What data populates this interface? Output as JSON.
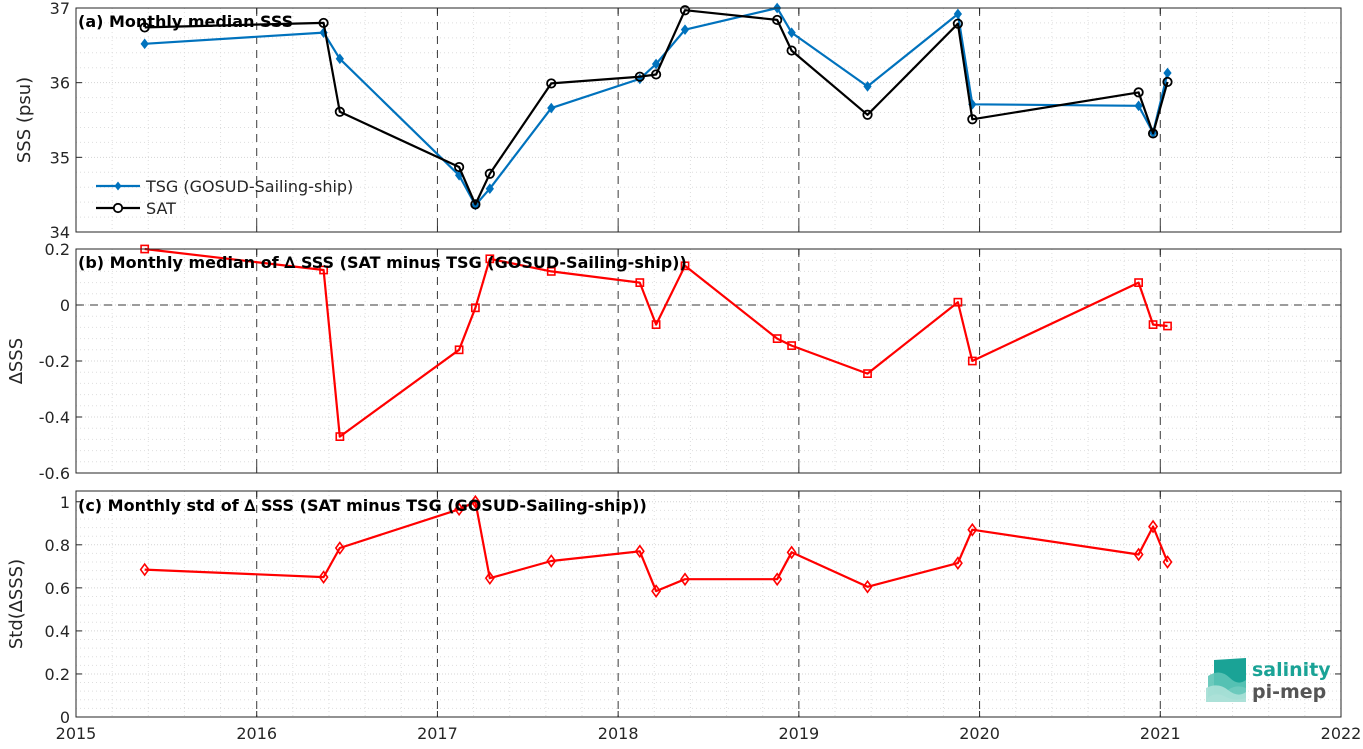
{
  "chart_data": [
    {
      "id": "a",
      "type": "line",
      "title": "(a) Monthly median SSS",
      "xlabel": "",
      "ylabel": "SSS (psu)",
      "xlim": [
        2015,
        2022
      ],
      "ylim": [
        34,
        37
      ],
      "yticks": [
        34,
        35,
        36,
        37
      ],
      "yticklabels": [
        "34",
        "35",
        "36",
        "37"
      ],
      "grid": true,
      "legend": "lower-left",
      "series": [
        {
          "name": "TSG (GOSUD-Sailing-ship)",
          "color": "#0072BD",
          "marker": "diamond-filled",
          "x": [
            2015.38,
            2016.37,
            2016.46,
            2017.12,
            2017.21,
            2017.29,
            2017.63,
            2018.12,
            2018.21,
            2018.37,
            2018.88,
            2018.96,
            2019.38,
            2019.88,
            2019.96,
            2020.88,
            2020.96,
            2021.04
          ],
          "y": [
            36.52,
            36.67,
            36.32,
            34.76,
            34.36,
            34.58,
            35.66,
            36.05,
            36.25,
            36.71,
            37.0,
            36.67,
            35.95,
            36.92,
            35.71,
            35.69,
            35.33,
            36.13
          ]
        },
        {
          "name": "SAT",
          "color": "#000000",
          "marker": "circle-open",
          "x": [
            2015.38,
            2016.37,
            2016.46,
            2017.12,
            2017.21,
            2017.29,
            2017.63,
            2018.12,
            2018.21,
            2018.37,
            2018.88,
            2018.96,
            2019.38,
            2019.88,
            2019.96,
            2020.88,
            2020.96,
            2021.04
          ],
          "y": [
            36.74,
            36.8,
            35.61,
            34.87,
            34.37,
            34.78,
            35.99,
            36.08,
            36.11,
            36.97,
            36.84,
            36.43,
            35.57,
            36.79,
            35.51,
            35.87,
            35.32,
            36.01
          ]
        }
      ]
    },
    {
      "id": "b",
      "type": "line",
      "title": "(b) Monthly median of ∆ SSS (SAT minus TSG (GOSUD-Sailing-ship))",
      "xlabel": "",
      "ylabel": "∆SSS",
      "xlim": [
        2015,
        2022
      ],
      "ylim": [
        -0.6,
        0.2
      ],
      "yticks": [
        -0.6,
        -0.4,
        -0.2,
        0,
        0.2
      ],
      "yticklabels": [
        "-0.6",
        "-0.4",
        "-0.2",
        "0",
        "0.2"
      ],
      "grid": true,
      "zero_line": true,
      "series": [
        {
          "name": "",
          "color": "#FF0000",
          "marker": "square-open",
          "x": [
            2015.38,
            2016.37,
            2016.46,
            2017.12,
            2017.21,
            2017.29,
            2017.63,
            2018.12,
            2018.21,
            2018.37,
            2018.88,
            2018.96,
            2019.38,
            2019.88,
            2019.96,
            2020.88,
            2020.96,
            2021.04
          ],
          "y": [
            0.2,
            0.125,
            -0.47,
            -0.16,
            -0.01,
            0.165,
            0.12,
            0.08,
            -0.07,
            0.14,
            -0.12,
            -0.145,
            -0.245,
            0.01,
            -0.2,
            0.08,
            -0.07,
            -0.075
          ]
        }
      ]
    },
    {
      "id": "c",
      "type": "line",
      "title": "(c) Monthly std of ∆ SSS (SAT minus TSG (GOSUD-Sailing-ship))",
      "xlabel": "",
      "ylabel": "Std(∆SSS)",
      "xlim": [
        2015,
        2022
      ],
      "ylim": [
        0,
        1.05
      ],
      "yticks": [
        0,
        0.2,
        0.4,
        0.6,
        0.8,
        1
      ],
      "yticklabels": [
        "0",
        "0.2",
        "0.4",
        "0.6",
        "0.8",
        "1"
      ],
      "xticks": [
        2015,
        2016,
        2017,
        2018,
        2019,
        2020,
        2021,
        2022
      ],
      "xticklabels": [
        "2015",
        "2016",
        "2017",
        "2018",
        "2019",
        "2020",
        "2021",
        "2022"
      ],
      "grid": true,
      "series": [
        {
          "name": "",
          "color": "#FF0000",
          "marker": "diamond-open",
          "x": [
            2015.38,
            2016.37,
            2016.46,
            2017.12,
            2017.21,
            2017.29,
            2017.63,
            2018.12,
            2018.21,
            2018.37,
            2018.88,
            2018.96,
            2019.38,
            2019.88,
            2019.96,
            2020.88,
            2020.96,
            2021.04
          ],
          "y": [
            0.685,
            0.65,
            0.785,
            0.965,
            1.0,
            0.645,
            0.725,
            0.77,
            0.585,
            0.64,
            0.64,
            0.765,
            0.605,
            0.715,
            0.87,
            0.755,
            0.885,
            0.72
          ]
        }
      ]
    }
  ],
  "logo": {
    "line1": "salinity",
    "line2": "pi-mep",
    "color": "#1aa396"
  }
}
